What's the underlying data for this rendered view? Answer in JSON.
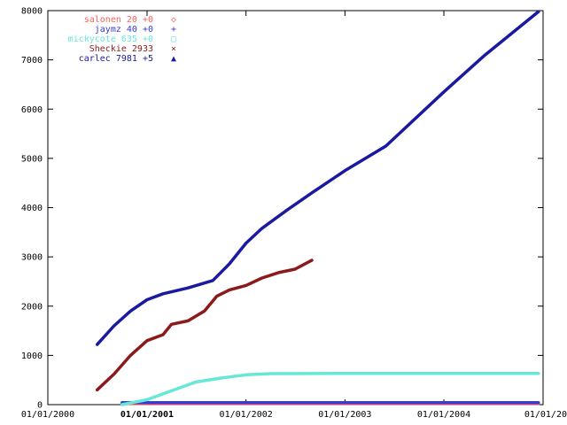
{
  "chart_data": {
    "type": "line",
    "x_axis_type": "date",
    "xlim": [
      "2000-01-01",
      "2005-01-01"
    ],
    "ylim": [
      0,
      8000
    ],
    "y_ticks": [
      0,
      1000,
      2000,
      3000,
      4000,
      5000,
      6000,
      7000,
      8000
    ],
    "x_ticks": [
      {
        "date": "2000-01-01",
        "label": "01/01/2000",
        "bold": false
      },
      {
        "date": "2001-01-01",
        "label": "01/01/2001",
        "bold": true
      },
      {
        "date": "2002-01-01",
        "label": "01/01/2002",
        "bold": false
      },
      {
        "date": "2003-01-01",
        "label": "01/01/2003",
        "bold": false
      },
      {
        "date": "2004-01-01",
        "label": "01/01/2004",
        "bold": false
      },
      {
        "date": "2005-01-01",
        "label": "01/01/20",
        "bold": false
      }
    ],
    "grid": false,
    "legend_position": "top-left",
    "series": [
      {
        "name": "salonen 20 +0",
        "marker": "◇",
        "color": "#ff5e5e",
        "points": [
          [
            "2000-10-01",
            20
          ],
          [
            "2004-12-15",
            20
          ]
        ]
      },
      {
        "name": "jaymz 40 +0",
        "marker": "+",
        "color": "#3a3ad6",
        "points": [
          [
            "2000-10-01",
            40
          ],
          [
            "2004-12-15",
            40
          ]
        ]
      },
      {
        "name": "mickycote 635 +0",
        "marker": "□",
        "color": "#66e8d8",
        "points": [
          [
            "2000-10-01",
            0
          ],
          [
            "2001-01-01",
            100
          ],
          [
            "2001-04-01",
            280
          ],
          [
            "2001-07-01",
            460
          ],
          [
            "2001-10-01",
            540
          ],
          [
            "2002-01-01",
            605
          ],
          [
            "2002-04-01",
            630
          ],
          [
            "2003-01-01",
            635
          ],
          [
            "2004-01-01",
            635
          ],
          [
            "2004-12-15",
            635
          ]
        ]
      },
      {
        "name": "Sheckie 2933",
        "marker": "×",
        "color": "#8b1a1a",
        "points": [
          [
            "2000-07-01",
            300
          ],
          [
            "2000-09-01",
            620
          ],
          [
            "2000-11-01",
            1000
          ],
          [
            "2001-01-01",
            1300
          ],
          [
            "2001-03-01",
            1420
          ],
          [
            "2001-04-01",
            1630
          ],
          [
            "2001-06-01",
            1700
          ],
          [
            "2001-08-01",
            1900
          ],
          [
            "2001-09-15",
            2200
          ],
          [
            "2001-11-01",
            2330
          ],
          [
            "2002-01-01",
            2420
          ],
          [
            "2002-03-01",
            2570
          ],
          [
            "2002-05-01",
            2680
          ],
          [
            "2002-07-01",
            2750
          ],
          [
            "2002-09-01",
            2933
          ]
        ]
      },
      {
        "name": "carlec 7981 +5",
        "marker": "▲",
        "color": "#1a1aa0",
        "points": [
          [
            "2000-07-01",
            1220
          ],
          [
            "2000-09-01",
            1600
          ],
          [
            "2000-11-01",
            1900
          ],
          [
            "2001-01-01",
            2130
          ],
          [
            "2001-03-01",
            2250
          ],
          [
            "2001-06-01",
            2370
          ],
          [
            "2001-09-01",
            2520
          ],
          [
            "2001-11-01",
            2860
          ],
          [
            "2002-01-01",
            3280
          ],
          [
            "2002-03-01",
            3580
          ],
          [
            "2002-06-01",
            3950
          ],
          [
            "2002-09-01",
            4300
          ],
          [
            "2003-01-01",
            4750
          ],
          [
            "2003-06-01",
            5250
          ],
          [
            "2004-01-01",
            6350
          ],
          [
            "2004-06-01",
            7100
          ],
          [
            "2004-12-15",
            7981
          ]
        ]
      }
    ]
  }
}
